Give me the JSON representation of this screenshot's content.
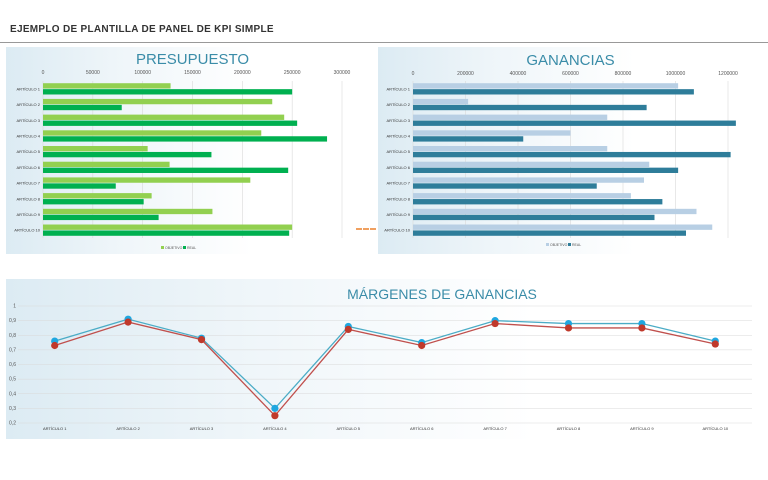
{
  "page": {
    "title": "EJEMPLO DE PLANTILLA DE PANEL DE KPI SIMPLE"
  },
  "colors": {
    "budget_target": "#92d050",
    "budget_actual": "#00b050",
    "profit_target": "#b8cfe4",
    "profit_actual": "#2e7d9a",
    "margin_line_a": "#4bacc6",
    "margin_line_b": "#c0504d",
    "margin_dot_a": "#1fa7e0",
    "margin_dot_b": "#c0392b",
    "grid": "#d9d9d9"
  },
  "chart_data": [
    {
      "id": "budget",
      "type": "bar",
      "orientation": "horizontal",
      "title": "PRESUPUESTO",
      "categories": [
        "ARTÍCULO 1",
        "ARTÍCULO 2",
        "ARTÍCULO 3",
        "ARTÍCULO 4",
        "ARTÍCULO 5",
        "ARTÍCULO 6",
        "ARTÍCULO 7",
        "ARTÍCULO 8",
        "ARTÍCULO 9",
        "ARTÍCULO 10"
      ],
      "series": [
        {
          "name": "OBJETIVO",
          "values": [
            128000,
            230000,
            242000,
            219000,
            105000,
            127000,
            208000,
            109000,
            170000,
            250000
          ]
        },
        {
          "name": "REAL",
          "values": [
            250000,
            79000,
            255000,
            285000,
            169000,
            246000,
            73000,
            101000,
            116000,
            247000
          ]
        }
      ],
      "xlim": [
        0,
        300000
      ],
      "xticks": [
        0,
        50000,
        100000,
        150000,
        200000,
        250000,
        300000
      ],
      "xtick_labels": [
        "0",
        "50000",
        "100000",
        "150000",
        "200000",
        "250000",
        "300000"
      ],
      "grid": true,
      "legend": "bottom"
    },
    {
      "id": "profit",
      "type": "bar",
      "orientation": "horizontal",
      "title": "GANANCIAS",
      "categories": [
        "ARTÍCULO 1",
        "ARTÍCULO 2",
        "ARTÍCULO 3",
        "ARTÍCULO 4",
        "ARTÍCULO 5",
        "ARTÍCULO 6",
        "ARTÍCULO 7",
        "ARTÍCULO 8",
        "ARTÍCULO 9",
        "ARTÍCULO 10"
      ],
      "series": [
        {
          "name": "OBJETIVO",
          "values": [
            1010000,
            210000,
            740000,
            600000,
            740000,
            900000,
            880000,
            830000,
            1080000,
            1140000
          ]
        },
        {
          "name": "REAL",
          "values": [
            1070000,
            890000,
            1230000,
            420000,
            1210000,
            1010000,
            700000,
            950000,
            920000,
            1040000
          ]
        }
      ],
      "xlim": [
        0,
        1200000
      ],
      "xticks": [
        0,
        200000,
        400000,
        600000,
        800000,
        1000000,
        1200000
      ],
      "xtick_labels": [
        "0",
        "200000",
        "400000",
        "600000",
        "800000",
        "1000000",
        "1200000"
      ],
      "grid": true,
      "legend": "bottom"
    },
    {
      "id": "margin",
      "type": "line",
      "title": "MÁRGENES DE GANANCIAS",
      "categories": [
        "ARTÍCULO 1",
        "ARTÍCULO 2",
        "ARTÍCULO 3",
        "ARTÍCULO 4",
        "ARTÍCULO 5",
        "ARTÍCULO 6",
        "ARTÍCULO 7",
        "ARTÍCULO 8",
        "ARTÍCULO 9",
        "ARTÍCULO 10"
      ],
      "series": [
        {
          "values": [
            0.76,
            0.91,
            0.78,
            0.3,
            0.86,
            0.75,
            0.9,
            0.88,
            0.88,
            0.76
          ]
        },
        {
          "values": [
            0.73,
            0.89,
            0.77,
            0.25,
            0.84,
            0.73,
            0.88,
            0.85,
            0.85,
            0.74
          ]
        }
      ],
      "ylim": [
        0.2,
        1
      ],
      "yticks": [
        0.2,
        0.3,
        0.4,
        0.5,
        0.6,
        0.7,
        0.8,
        0.9,
        1
      ],
      "ytick_labels": [
        "0,2",
        "0,3",
        "0,4",
        "0,5",
        "0,6",
        "0,7",
        "0,8",
        "0,9",
        "1"
      ],
      "grid": true
    }
  ]
}
